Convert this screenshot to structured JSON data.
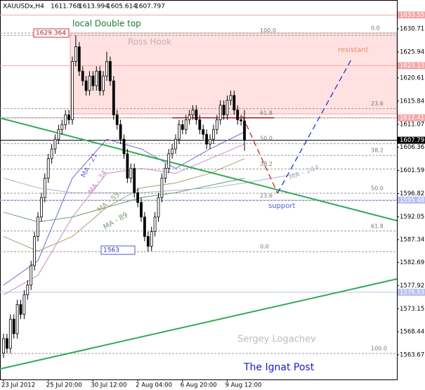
{
  "chart_data": {
    "type": "candlestick",
    "symbol": "XAUUSDx,H4",
    "categories": [
      "23 Jul 2012",
      null,
      null,
      null,
      null,
      null,
      null,
      null,
      null,
      null,
      null,
      null,
      null,
      "25 Jul 20:00",
      null,
      null,
      null,
      null,
      null,
      null,
      null,
      null,
      null,
      null,
      null,
      null,
      "30 Jul 12:00",
      null,
      null,
      null,
      null,
      null,
      null,
      null,
      null,
      null,
      null,
      null,
      null,
      "2 Aug 04:00",
      null,
      null,
      null,
      null,
      null,
      null,
      null,
      null,
      null,
      null,
      null,
      null,
      "6 Aug 20:00",
      null,
      null,
      null,
      null,
      null,
      null,
      null,
      null,
      null,
      null,
      null,
      null,
      "9 Aug 12:00",
      null,
      null,
      null,
      null,
      null
    ],
    "open": [
      1564,
      1567,
      1565,
      1571,
      1568,
      1574,
      1572,
      1576,
      1578,
      1582,
      1588,
      1592,
      1596,
      1600,
      1604,
      1606,
      1608,
      1610,
      1611,
      1613,
      1612,
      1624,
      1627,
      1622,
      1620,
      1618,
      1621,
      1619,
      1622,
      1618,
      1621,
      1624,
      1620,
      1613,
      1611,
      1608,
      1605,
      1600,
      1602,
      1597,
      1595,
      1592,
      1588,
      1586,
      1589,
      1592,
      1596,
      1600,
      1602,
      1605,
      1606,
      1608,
      1611,
      1610,
      1612,
      1613,
      1614,
      1612,
      1610,
      1609,
      1607,
      1608,
      1610,
      1612,
      1615,
      1613,
      1616,
      1617,
      1614,
      1612,
      1611.768
    ],
    "high": [
      1568,
      1568,
      1572,
      1572,
      1575,
      1575,
      1577,
      1579,
      1583,
      1589,
      1593,
      1597,
      1601,
      1605,
      1607,
      1609,
      1611,
      1612,
      1614,
      1614,
      1625,
      1629.364,
      1628,
      1623,
      1621,
      1622,
      1622,
      1623,
      1623,
      1622,
      1626,
      1625,
      1621,
      1614,
      1612,
      1609,
      1606,
      1603,
      1603,
      1598,
      1596,
      1593,
      1589,
      1590,
      1593,
      1597,
      1601,
      1603,
      1606,
      1607,
      1609,
      1612,
      1612,
      1613,
      1614,
      1615,
      1615,
      1613,
      1611,
      1610,
      1609,
      1611,
      1613,
      1616,
      1616,
      1617,
      1618,
      1618,
      1615,
      1613,
      1613.994
    ],
    "low": [
      1563,
      1564,
      1564,
      1567,
      1567,
      1571,
      1571,
      1575,
      1577,
      1581,
      1587,
      1591,
      1595,
      1599,
      1603,
      1605,
      1607,
      1609,
      1610,
      1611,
      1611,
      1623,
      1621,
      1619,
      1617,
      1617,
      1618,
      1618,
      1617,
      1617,
      1620,
      1619,
      1612,
      1610,
      1607,
      1604,
      1599,
      1599,
      1596,
      1594,
      1591,
      1587,
      1584.881,
      1585,
      1588,
      1591,
      1595,
      1599,
      1601,
      1604,
      1605,
      1607,
      1609,
      1609,
      1611,
      1612,
      1611,
      1609,
      1608,
      1606,
      1606,
      1607,
      1609,
      1611,
      1612,
      1612,
      1615,
      1613,
      1611,
      1610.8,
      1605.614
    ],
    "close": [
      1567,
      1565,
      1571,
      1568,
      1574,
      1572,
      1576,
      1578,
      1582,
      1588,
      1592,
      1596,
      1600,
      1604,
      1606,
      1608,
      1610,
      1611,
      1613,
      1612,
      1624,
      1627,
      1622,
      1620,
      1618,
      1621,
      1619,
      1622,
      1618,
      1621,
      1624,
      1620,
      1613,
      1611,
      1608,
      1605,
      1600,
      1602,
      1597,
      1595,
      1592,
      1588,
      1586,
      1589,
      1592,
      1596,
      1600,
      1602,
      1605,
      1606,
      1608,
      1611,
      1610,
      1612,
      1613,
      1614,
      1612,
      1610,
      1609,
      1607,
      1608,
      1610,
      1612,
      1615,
      1613,
      1616,
      1617,
      1614,
      1612,
      1611.768,
      1607.797
    ],
    "ylim": [
      1558.6,
      1636.63
    ],
    "yticks": [
      1630.71,
      1625.94,
      1620.61,
      1615.84,
      1611.07,
      1606.36,
      1601.59,
      1596.82,
      1592.05,
      1587.34,
      1582.69,
      1577.92,
      1573.15,
      1568.44,
      1563.67
    ],
    "levels": [
      {
        "value": 1633.55,
        "color": "#f4a6a6"
      },
      {
        "value": 1623.13,
        "color": "#f4a6a6"
      },
      {
        "value": 1612.41,
        "color": "#f4a6a6"
      },
      {
        "value": 1607.79,
        "color": "#000000"
      },
      {
        "value": 1595.48,
        "color": "#b8c0f0"
      },
      {
        "value": 1576.53,
        "color": "#b8c0f0"
      }
    ],
    "moving_averages": [
      {
        "name": "MA - 21",
        "color": "#6a6ad8",
        "x": [
          0,
          10,
          20,
          30,
          40,
          50,
          60,
          70
        ],
        "values": [
          1578,
          1583,
          1600,
          1608,
          1606,
          1602,
          1606,
          1609.5
        ]
      },
      {
        "name": "MA - 34",
        "color": "#c88ac8",
        "x": [
          0,
          10,
          20,
          30,
          40,
          50,
          60,
          70
        ],
        "values": [
          1576,
          1580,
          1592,
          1601,
          1602,
          1601,
          1604,
          1607
        ]
      },
      {
        "name": "MA - 55",
        "color": "#a4a070",
        "x": [
          0,
          10,
          20,
          30,
          40,
          50,
          60,
          70
        ],
        "values": [
          1588,
          1585,
          1588,
          1594,
          1598,
          1599,
          1601,
          1604
        ]
      },
      {
        "name": "MA - 89",
        "color": "#6f9a6f",
        "x": [
          0,
          10,
          20,
          30,
          40,
          50,
          60,
          70
        ],
        "values": [
          1593,
          1591,
          1592,
          1594,
          1596,
          1597,
          1598.5,
          1600
        ]
      },
      {
        "name": "MA - 144",
        "color": "#a8b4cc",
        "x": [
          0,
          10,
          20,
          30,
          40,
          50,
          60,
          70,
          86
        ],
        "values": [
          1600,
          1598,
          1597,
          1597,
          1597,
          1597.5,
          1598,
          1599,
          1601
        ]
      }
    ],
    "trendlines": [
      {
        "color": "#2eaa55",
        "x": [
          -1.02,
          114.29
        ],
        "values": [
          1612.35,
          1591.25
        ]
      },
      {
        "color": "#2eaa55",
        "x": [
          -1.02,
          114.29
        ],
        "values": [
          1560.76,
          1579.26
        ]
      }
    ],
    "projections": [
      {
        "color": "#cc2222",
        "x": [
          69.4,
          79.6
        ],
        "values": [
          1612.79,
          1596.9
        ]
      },
      {
        "color": "#2233cc",
        "x": [
          79.6,
          101
        ],
        "values": [
          1596.9,
          1624.35
        ]
      }
    ],
    "fib_sets": [
      {
        "levels": [
          {
            "ratio": "100.0",
            "price": 1629.364
          },
          {
            "ratio": "61.8",
            "price": 1612.37
          },
          {
            "ratio": "50.0",
            "price": 1607.12
          },
          {
            "ratio": "38.2",
            "price": 1601.87
          },
          {
            "ratio": "23.6",
            "price": 1595.38
          },
          {
            "ratio": "0.0",
            "price": 1584.881
          }
        ]
      },
      {
        "levels": [
          {
            "ratio": "0.0",
            "price": 1629.84
          },
          {
            "ratio": "23.6",
            "price": 1614.29
          },
          {
            "ratio": "38.2",
            "price": 1604.67
          },
          {
            "ratio": "50.0",
            "price": 1596.9
          },
          {
            "ratio": "61.8",
            "price": 1589.12
          },
          {
            "ratio": "100.0",
            "price": 1563.95
          }
        ]
      }
    ],
    "zone": {
      "label": "Ross Hook",
      "top": 1629.84,
      "bottom": 1613.2
    },
    "annotations": {
      "double_top": "local Double top",
      "resistant": "resistant",
      "support": "support",
      "author": "Sergey Logachev",
      "source": "The Ignat Post"
    }
  }
}
